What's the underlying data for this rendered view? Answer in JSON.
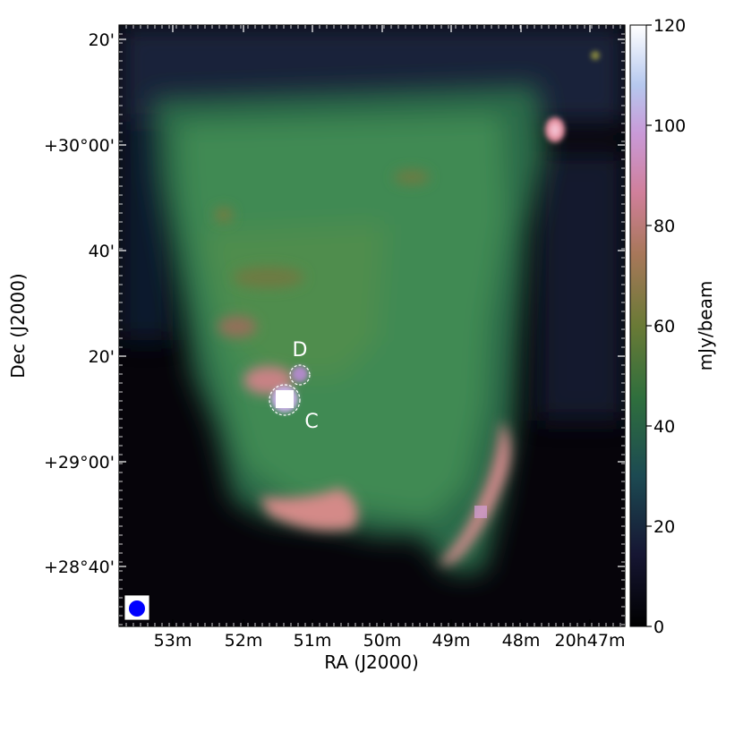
{
  "chart_data": {
    "type": "heatmap",
    "xlabel": "RA (J2000)",
    "ylabel": "Dec (J2000)",
    "x_ticks": [
      "53m",
      "52m",
      "51m",
      "50m",
      "49m",
      "48m",
      "20h47m"
    ],
    "y_ticks": [
      "20'",
      "+30°00'",
      "40'",
      "20'",
      "+29°00'",
      "+28°40'"
    ],
    "colorbar": {
      "label": "mJy/beam",
      "range": [
        0,
        120
      ],
      "ticks": [
        "0",
        "20",
        "40",
        "60",
        "80",
        "100",
        "120"
      ],
      "colormap": "cubehelix"
    },
    "annotations": [
      {
        "label": "D",
        "marker": "dashed-circle"
      },
      {
        "label": "C",
        "marker": "dashed-circle"
      }
    ],
    "beam_marker_color": "#0000ff",
    "colors": {
      "background": "#07040b",
      "dark_blue": "#1b2240",
      "green": "#3d7a4a",
      "olive": "#6e7f45",
      "pink": "#d98a8a",
      "lavender": "#c4a0e0",
      "white": "#ffffff"
    }
  }
}
